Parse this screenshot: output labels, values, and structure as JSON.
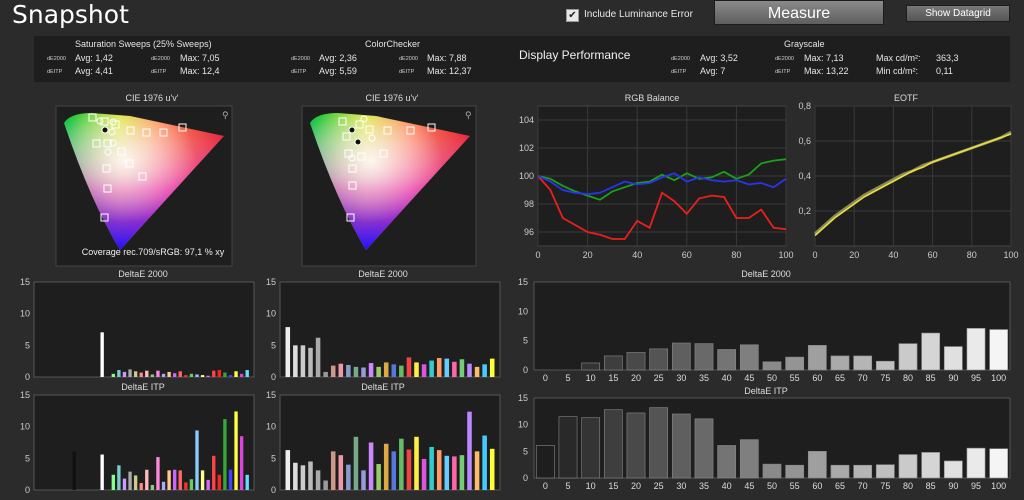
{
  "header": {
    "title": "Snapshot",
    "luminance_label": "Include Luminance Error",
    "luminance_checked": "✔",
    "measure_label": "Measure",
    "datagrid_label": "Show Datagrid"
  },
  "summary": {
    "sat": {
      "title": "Saturation Sweeps (25% Sweeps)",
      "k1": "dE2000",
      "k2": "dEITP",
      "avg1": "Avg: 1,42",
      "max1": "Max: 7,05",
      "avg2": "Avg: 4,41",
      "max2": "Max: 12,4"
    },
    "cc": {
      "title": "ColorChecker",
      "k1": "dE2000",
      "k2": "dEITP",
      "avg1": "Avg: 2,36",
      "max1": "Max: 7,88",
      "avg2": "Avg: 5,59",
      "max2": "Max: 12,37"
    },
    "display_performance": "Display Performance",
    "gs": {
      "title": "Grayscale",
      "k1": "dE2000",
      "k2": "dEITP",
      "avg1": "Avg: 3,52",
      "max1": "Max: 7,13",
      "avg2": "Avg: 7",
      "max2": "Max: 13,22",
      "maxcd": "Max cd/m²:",
      "maxcd_v": "363,3",
      "mincd": "Min cd/m²:",
      "mincd_v": "0,11"
    }
  },
  "cie": [
    {
      "title": "CIE 1976 u'v'",
      "coverage": "Coverage rec.709/sRGB:  97,1 % xy"
    },
    {
      "title": "CIE 1976 u'v'"
    }
  ],
  "rgb_balance": {
    "title": "RGB Balance",
    "y_ticks": [
      "104",
      "102",
      "100",
      "98",
      "96"
    ],
    "x_ticks": [
      "0",
      "20",
      "40",
      "60",
      "80",
      "100"
    ],
    "colors": {
      "red": "#e8201c",
      "green": "#1aa01a",
      "blue": "#2a33ee"
    }
  },
  "eotf": {
    "title": "EOTF",
    "y_ticks": [
      "0,8",
      "0,6",
      "0,4",
      "0,2"
    ],
    "x_ticks": [
      "0",
      "20",
      "40",
      "60",
      "80",
      "100"
    ]
  },
  "small_charts": [
    {
      "title": "DeltaE 2000",
      "y_ticks": [
        "15",
        "10",
        "5",
        "0"
      ]
    },
    {
      "title": "DeltaE 2000",
      "y_ticks": [
        "15",
        "10",
        "5",
        "0"
      ]
    },
    {
      "title": "DeltaE ITP",
      "y_ticks": [
        "15",
        "10",
        "5",
        "0"
      ]
    },
    {
      "title": "DeltaE ITP",
      "y_ticks": [
        "15",
        "10",
        "5",
        "0"
      ]
    }
  ],
  "chart_data": [
    {
      "type": "bar",
      "title": "DeltaE 2000",
      "chart": "Saturation Sweeps",
      "ylim": [
        0,
        15
      ],
      "values": [
        0,
        0,
        0,
        0,
        0,
        0,
        0,
        0,
        0,
        0,
        0,
        7.05,
        0,
        0.5,
        1.1,
        0.8,
        1.2,
        0.9,
        0.7,
        1,
        0.4,
        1,
        0.5,
        0.8,
        0.6,
        0.9,
        0.3,
        0.5,
        0.4,
        0.3,
        0.2,
        1,
        1.1,
        0.7,
        0.3,
        0.9,
        0.5,
        1.1
      ],
      "colors": [
        "#222",
        "#222",
        "#222",
        "#222",
        "#222",
        "#222",
        "#222",
        "#222",
        "#222",
        "#222",
        "#222",
        "#ffffff",
        "#2a2",
        "#8f8",
        "#7cc",
        "#c9f",
        "#aaa",
        "#cc8",
        "#f88",
        "#fbb",
        "#8c8",
        "#f8d",
        "#aaf",
        "#fc8",
        "#c6f",
        "#f66",
        "#e33",
        "#6c6",
        "#8cf",
        "#ff8",
        "#d6f",
        "#f44",
        "#f22",
        "#3a3",
        "#44f",
        "#ff4",
        "#d4d",
        "#6df"
      ]
    },
    {
      "type": "bar",
      "title": "DeltaE 2000",
      "chart": "ColorChecker",
      "ylim": [
        0,
        15
      ],
      "values": [
        7.88,
        5,
        5,
        4.6,
        6.2,
        0.8,
        1.8,
        2.1,
        1.9,
        1.6,
        1.5,
        2.2,
        1.6,
        2.3,
        2,
        1.8,
        3.1,
        2.3,
        2,
        2.6,
        3,
        2.9,
        2.4,
        2.8,
        2.1,
        1.6,
        2,
        2.9
      ],
      "colors": [
        "#eee",
        "#ddd",
        "#ccc",
        "#bbb",
        "#aaa",
        "#999",
        "#c98",
        "#e9a",
        "#89c",
        "#7a8",
        "#99d",
        "#c8f",
        "#9c6",
        "#da4",
        "#57d",
        "#6b6",
        "#e44",
        "#fe4",
        "#d5d",
        "#3cc",
        "#f96",
        "#6cf",
        "#f6a",
        "#7c7",
        "#b8f",
        "#fb6",
        "#4cf",
        "#ff3"
      ]
    },
    {
      "type": "bar",
      "title": "DeltaE ITP",
      "chart": "Saturation Sweeps",
      "ylim": [
        0,
        15
      ],
      "values": [
        0,
        0,
        0,
        0,
        0,
        0,
        6.1,
        0,
        0,
        0,
        0,
        5.6,
        0,
        2.4,
        3.9,
        1.8,
        2.9,
        2.3,
        1.1,
        3.2,
        0.8,
        5.2,
        1.3,
        3.1,
        3.2,
        3.1,
        1.2,
        1.7,
        9.4,
        3.1,
        1.6,
        5.4,
        2.4,
        11.2,
        3.2,
        12.4,
        8.5,
        2.4
      ],
      "colors": [
        "#222",
        "#222",
        "#222",
        "#222",
        "#222",
        "#222",
        "#111",
        "#222",
        "#222",
        "#222",
        "#222",
        "#ffffff",
        "#2a2",
        "#8f8",
        "#7cc",
        "#c9f",
        "#aaa",
        "#cc8",
        "#f88",
        "#fbb",
        "#8c8",
        "#f8d",
        "#aaf",
        "#fc8",
        "#c6f",
        "#f66",
        "#e33",
        "#6c6",
        "#8cf",
        "#ff8",
        "#d6f",
        "#f44",
        "#f22",
        "#3a3",
        "#44f",
        "#ff4",
        "#d4d",
        "#6df"
      ]
    },
    {
      "type": "bar",
      "title": "DeltaE ITP",
      "chart": "ColorChecker",
      "ylim": [
        0,
        15
      ],
      "values": [
        6.3,
        4.3,
        3.9,
        4.5,
        3.1,
        1.5,
        6.1,
        5.5,
        4,
        8.4,
        3.1,
        7.5,
        4.1,
        7.3,
        6.1,
        8.1,
        6.4,
        8.4,
        4.9,
        6.8,
        6.3,
        5.4,
        5.3,
        5.5,
        12.37,
        6.1,
        8.6,
        6.5
      ],
      "colors": [
        "#eee",
        "#ddd",
        "#ccc",
        "#bbb",
        "#aaa",
        "#999",
        "#c98",
        "#e9a",
        "#89c",
        "#7a8",
        "#99d",
        "#c8f",
        "#9c6",
        "#da4",
        "#57d",
        "#6b6",
        "#e44",
        "#fe4",
        "#d5d",
        "#3cc",
        "#f96",
        "#6cf",
        "#f6a",
        "#7c7",
        "#b8f",
        "#fb6",
        "#4cf",
        "#ff3"
      ]
    },
    {
      "type": "bar",
      "title": "DeltaE 2000",
      "chart": "Grayscale",
      "ylim": [
        0,
        15
      ],
      "categories": [
        "0",
        "5",
        "10",
        "15",
        "20",
        "25",
        "30",
        "35",
        "40",
        "45",
        "50",
        "55",
        "60",
        "65",
        "70",
        "75",
        "80",
        "85",
        "90",
        "95",
        "100"
      ],
      "values": [
        0,
        0,
        1.2,
        2.4,
        3,
        3.6,
        4.6,
        4.5,
        3.5,
        4.3,
        1.4,
        2.2,
        4.2,
        2.4,
        2.4,
        1.5,
        4.5,
        6.3,
        4,
        7.1,
        6.9
      ]
    },
    {
      "type": "bar",
      "title": "DeltaE ITP",
      "chart": "Grayscale",
      "ylim": [
        0,
        15
      ],
      "categories": [
        "0",
        "5",
        "10",
        "15",
        "20",
        "25",
        "30",
        "35",
        "40",
        "45",
        "50",
        "55",
        "60",
        "65",
        "70",
        "75",
        "80",
        "85",
        "90",
        "95",
        "100"
      ],
      "values": [
        6.1,
        11.5,
        11.3,
        12.8,
        12.2,
        13.2,
        12,
        11.1,
        6.1,
        7.2,
        2.6,
        2.4,
        5,
        2.4,
        2.4,
        2.5,
        4.4,
        4.8,
        3.2,
        5.6,
        5.5
      ]
    },
    {
      "type": "line",
      "title": "RGB Balance",
      "ylim": [
        95,
        105
      ],
      "xlim": [
        0,
        100
      ],
      "x": [
        0,
        5,
        10,
        15,
        20,
        25,
        30,
        35,
        40,
        45,
        50,
        55,
        60,
        65,
        70,
        75,
        80,
        85,
        90,
        95,
        100
      ],
      "series": [
        {
          "name": "red",
          "values": [
            100,
            99,
            97,
            96.5,
            96,
            95.8,
            95.5,
            95.5,
            96.8,
            96.3,
            98.8,
            98.2,
            97.3,
            98.4,
            98.6,
            98.5,
            97,
            97,
            97.6,
            96.3,
            96.2
          ]
        },
        {
          "name": "green",
          "values": [
            100,
            99.8,
            99.3,
            98.9,
            98.6,
            98.3,
            98.9,
            99.2,
            99.5,
            99.6,
            100.1,
            99.7,
            100.2,
            99.8,
            99.9,
            100.3,
            99.8,
            100.1,
            100.9,
            101.1,
            101.2
          ]
        },
        {
          "name": "blue",
          "values": [
            100,
            99.6,
            99,
            98.8,
            98.7,
            98.8,
            99.2,
            99.6,
            99.4,
            99.5,
            99.9,
            100.2,
            99.6,
            99.9,
            99.7,
            99.6,
            99.7,
            99.4,
            99.5,
            99.2,
            99.8
          ]
        }
      ]
    },
    {
      "type": "line",
      "title": "EOTF",
      "ylim": [
        0,
        0.8
      ],
      "xlim": [
        0,
        100
      ],
      "x": [
        0,
        5,
        10,
        15,
        20,
        25,
        30,
        35,
        40,
        45,
        50,
        55,
        60,
        65,
        70,
        75,
        80,
        85,
        90,
        95,
        100
      ],
      "series": [
        {
          "name": "target",
          "values": [
            0.07,
            0.12,
            0.17,
            0.21,
            0.25,
            0.29,
            0.32,
            0.35,
            0.38,
            0.41,
            0.43,
            0.46,
            0.48,
            0.5,
            0.52,
            0.54,
            0.56,
            0.58,
            0.6,
            0.62,
            0.65
          ]
        },
        {
          "name": "measured",
          "values": [
            0.06,
            0.11,
            0.16,
            0.2,
            0.24,
            0.28,
            0.31,
            0.34,
            0.37,
            0.4,
            0.43,
            0.45,
            0.48,
            0.5,
            0.52,
            0.54,
            0.56,
            0.58,
            0.6,
            0.62,
            0.64
          ]
        }
      ]
    }
  ]
}
